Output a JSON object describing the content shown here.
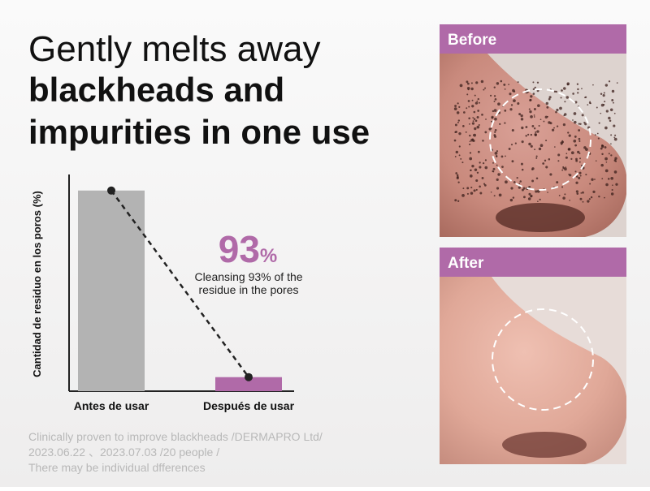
{
  "headline": {
    "lines": [
      "Gently melts away",
      "blackheads and",
      "impurities in one use"
    ]
  },
  "chart_data": {
    "type": "bar",
    "y_label": "Cantidad de residuo en los poros (%)",
    "categories": [
      "Antes de usar",
      "Después de usar"
    ],
    "values": [
      100,
      7
    ],
    "colors": [
      "#b3b3b3",
      "#b06aa8"
    ],
    "ylim": [
      0,
      108
    ],
    "annotation": {
      "number": "93",
      "unit": "%",
      "lines": [
        "Cleansing 93% of the",
        "residue in the pores"
      ]
    }
  },
  "photos": {
    "before": "Before",
    "after": "After"
  },
  "footnote": [
    "Clinically proven to improve blackheads /DERMAPRO Ltd/",
    "2023.06.22 、2023.07.03 /20 people /",
    "There may be individual dfferences"
  ]
}
